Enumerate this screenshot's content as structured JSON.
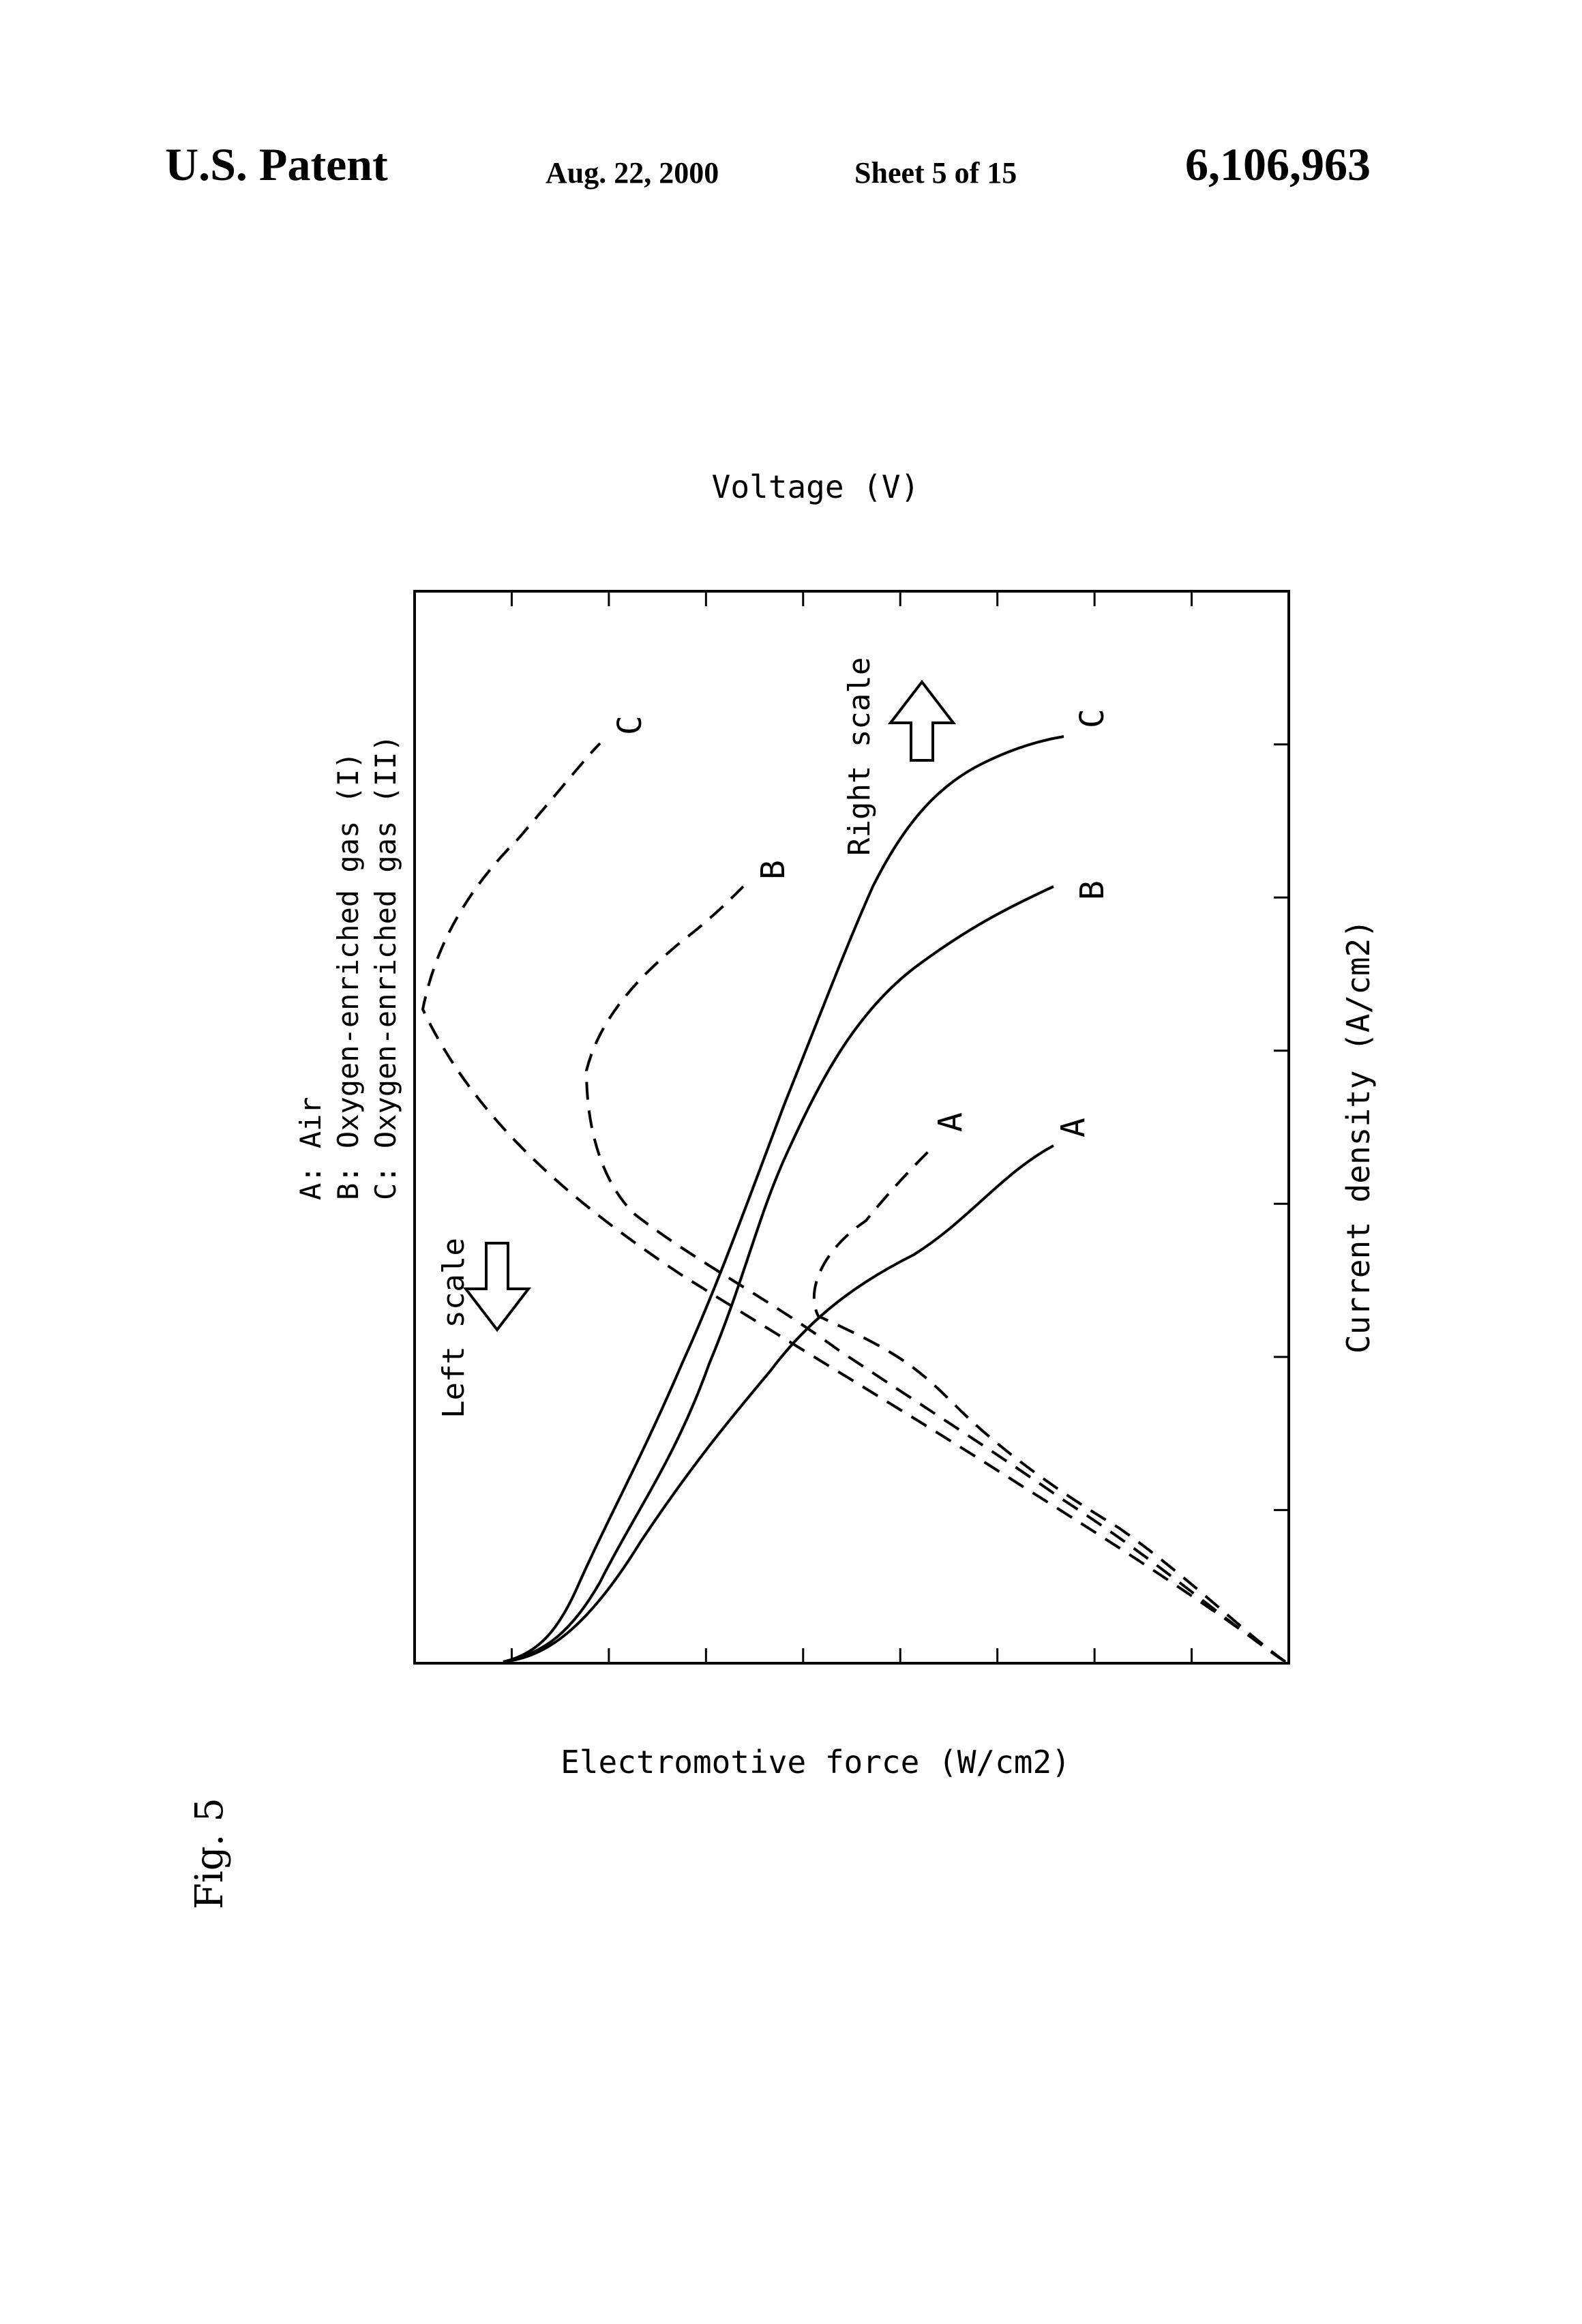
{
  "header": {
    "patent_label": "U.S. Patent",
    "date": "Aug. 22, 2000",
    "sheet": "Sheet 5 of 15",
    "patent_number": "6,106,963"
  },
  "figure": {
    "label": "Fig. 5",
    "legend": {
      "a": "A: Air",
      "b": "B: Oxygen-enriched gas (I)",
      "c": "C: Oxygen-enriched gas (II)"
    },
    "left_scale_label": "Left scale",
    "right_scale_label": "Right scale",
    "curve_labels": [
      "A",
      "B",
      "C"
    ]
  },
  "chart_data": {
    "type": "line",
    "title": "",
    "x_label": "Current density (A/cm2)",
    "y_left_label": "Electromotive force (W/cm2)",
    "y_right_label": "Voltage (V)",
    "orientation": "rotated 90° counter-clockwise on page",
    "grid": false,
    "x_ticks": 7,
    "y_ticks": 9,
    "series": [
      {
        "name": "A",
        "style": "solid",
        "axis": "right"
      },
      {
        "name": "B",
        "style": "solid",
        "axis": "right"
      },
      {
        "name": "C",
        "style": "solid",
        "axis": "right"
      },
      {
        "name": "A",
        "style": "dashed",
        "axis": "left"
      },
      {
        "name": "B",
        "style": "dashed",
        "axis": "left"
      },
      {
        "name": "C",
        "style": "dashed",
        "axis": "left"
      }
    ]
  }
}
